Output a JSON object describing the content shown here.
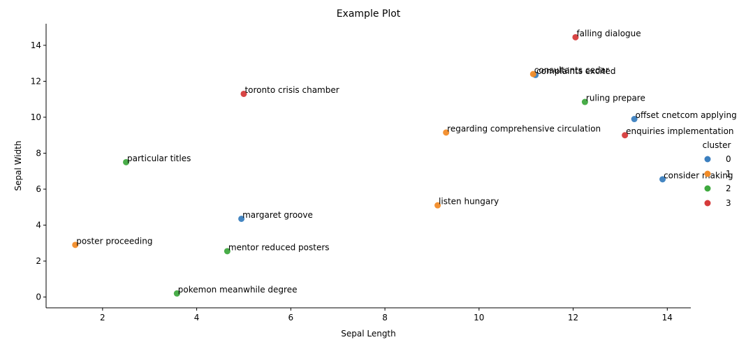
{
  "chart_data": {
    "type": "scatter",
    "title": "Example Plot",
    "xlabel": "Sepal Length",
    "ylabel": "Sepal Width",
    "xlim": [
      0.8,
      14.5
    ],
    "ylim": [
      -0.6,
      15.2
    ],
    "xticks": [
      2,
      4,
      6,
      8,
      10,
      12,
      14
    ],
    "yticks": [
      0,
      2,
      4,
      6,
      8,
      10,
      12,
      14
    ],
    "legend": {
      "title": "cluster",
      "placement": "right"
    },
    "series": [
      {
        "name": "0",
        "color": "#3b7fbf",
        "points": [
          {
            "x": 13.3,
            "y": 9.9,
            "label": "offset cnetcom applying"
          },
          {
            "x": 13.9,
            "y": 6.55,
            "label": "consider making"
          },
          {
            "x": 4.95,
            "y": 4.35,
            "label": "margaret groove"
          },
          {
            "x": 11.2,
            "y": 12.35,
            "label": "complaints excited"
          }
        ]
      },
      {
        "name": "1",
        "color": "#f28c28",
        "points": [
          {
            "x": 11.15,
            "y": 12.4,
            "label": "consultants cedar"
          },
          {
            "x": 9.3,
            "y": 9.15,
            "label": "regarding comprehensive circulation"
          },
          {
            "x": 9.12,
            "y": 5.1,
            "label": "listen hungary"
          },
          {
            "x": 1.42,
            "y": 2.9,
            "label": "poster proceeding"
          }
        ]
      },
      {
        "name": "2",
        "color": "#3fa93f",
        "points": [
          {
            "x": 12.25,
            "y": 10.85,
            "label": "ruling prepare"
          },
          {
            "x": 2.5,
            "y": 7.5,
            "label": "particular titles"
          },
          {
            "x": 4.65,
            "y": 2.55,
            "label": "mentor reduced posters"
          },
          {
            "x": 3.58,
            "y": 0.2,
            "label": "pokemon meanwhile degree"
          }
        ]
      },
      {
        "name": "3",
        "color": "#d63b3b",
        "points": [
          {
            "x": 12.05,
            "y": 14.45,
            "label": "falling dialogue"
          },
          {
            "x": 5.0,
            "y": 11.3,
            "label": "toronto crisis chamber"
          },
          {
            "x": 13.1,
            "y": 9.0,
            "label": "enquiries implementation"
          }
        ]
      }
    ]
  }
}
